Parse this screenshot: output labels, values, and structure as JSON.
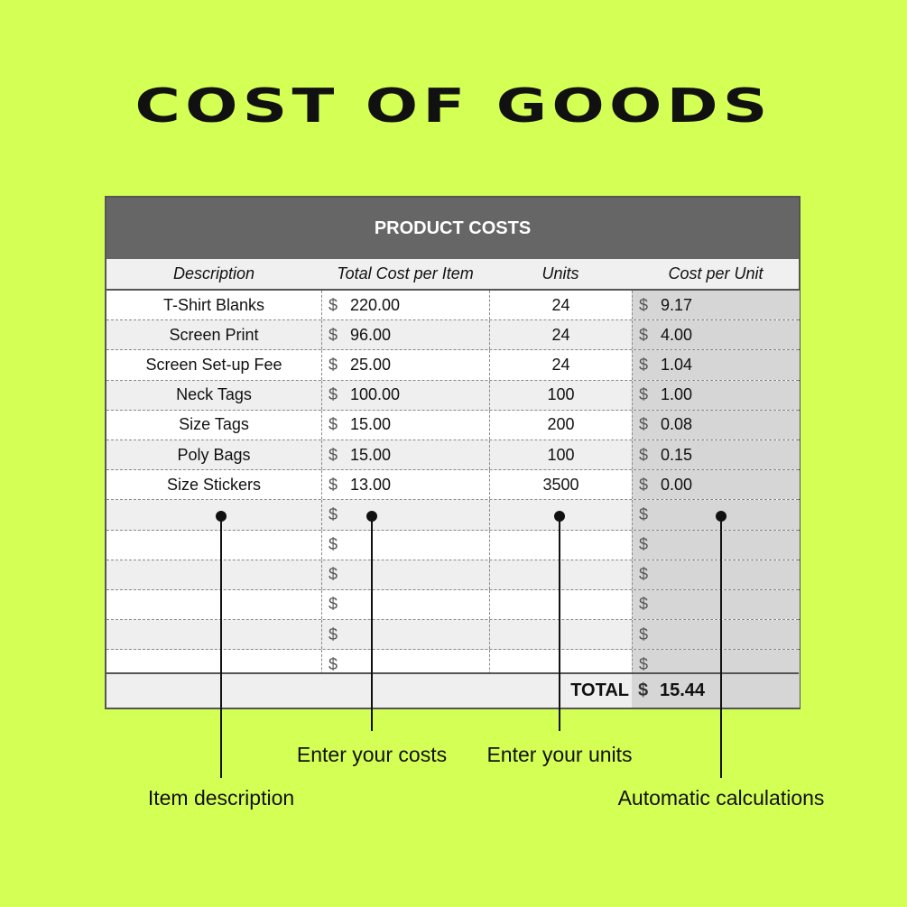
{
  "title": "COST OF GOODS",
  "sheet": {
    "header": "PRODUCT COSTS",
    "columns": {
      "description": "Description",
      "total_cost": "Total Cost per Item",
      "units": "Units",
      "cost_per_unit": "Cost per Unit"
    },
    "currency_symbol": "$",
    "rows": [
      {
        "description": "T-Shirt Blanks",
        "total_cost": "220.00",
        "units": "24",
        "cost_per_unit": "9.17"
      },
      {
        "description": "Screen Print",
        "total_cost": "96.00",
        "units": "24",
        "cost_per_unit": "4.00"
      },
      {
        "description": "Screen Set-up Fee",
        "total_cost": "25.00",
        "units": "24",
        "cost_per_unit": "1.04"
      },
      {
        "description": "Neck Tags",
        "total_cost": "100.00",
        "units": "100",
        "cost_per_unit": "1.00"
      },
      {
        "description": "Size Tags",
        "total_cost": "15.00",
        "units": "200",
        "cost_per_unit": "0.08"
      },
      {
        "description": "Poly Bags",
        "total_cost": "15.00",
        "units": "100",
        "cost_per_unit": "0.15"
      },
      {
        "description": "Size Stickers",
        "total_cost": "13.00",
        "units": "3500",
        "cost_per_unit": "0.00"
      },
      {
        "description": "",
        "total_cost": "",
        "units": "",
        "cost_per_unit": ""
      },
      {
        "description": "",
        "total_cost": "",
        "units": "",
        "cost_per_unit": ""
      },
      {
        "description": "",
        "total_cost": "",
        "units": "",
        "cost_per_unit": ""
      },
      {
        "description": "",
        "total_cost": "",
        "units": "",
        "cost_per_unit": ""
      },
      {
        "description": "",
        "total_cost": "",
        "units": "",
        "cost_per_unit": ""
      },
      {
        "description": "",
        "total_cost": "",
        "units": "",
        "cost_per_unit": ""
      }
    ],
    "total_label": "TOTAL",
    "total_value": "15.44"
  },
  "annotations": {
    "item_description": "Item description",
    "enter_costs": "Enter your costs",
    "enter_units": "Enter your units",
    "automatic_calculations": "Automatic calculations"
  },
  "colors": {
    "background": "#d4ff55",
    "header": "#666666",
    "calc_column": "#d6d6d6"
  }
}
